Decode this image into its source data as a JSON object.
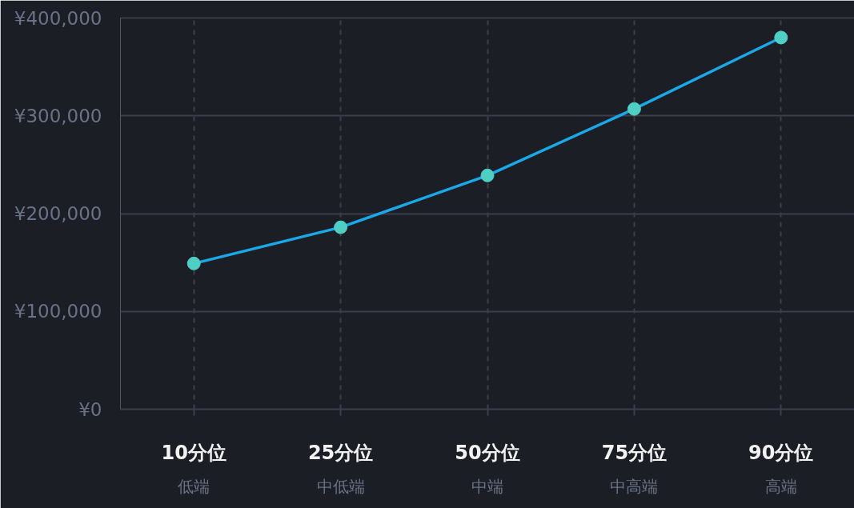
{
  "chart_data": {
    "type": "line",
    "categories": [
      "10分位",
      "25分位",
      "50分位",
      "75分位",
      "90分位"
    ],
    "values": [
      149000,
      186000,
      239000,
      307000,
      380000
    ],
    "color": "#1aa9e6",
    "colors": [
      "#4fcfc3",
      "#4fcfc3",
      "#4fcfc3",
      "#4fcfc3",
      "#4fcfc3"
    ],
    "ylim": [
      0,
      400000
    ],
    "yticks": [
      {
        "value": 0,
        "label": "¥0"
      },
      {
        "value": 100000,
        "label": "¥100,000"
      },
      {
        "value": 200000,
        "label": "¥200,000"
      },
      {
        "value": 300000,
        "label": "¥300,000"
      },
      {
        "value": 400000,
        "label": "¥400,000"
      }
    ],
    "annotations": [
      "低端",
      "中低端",
      "中端",
      "中高端",
      "高端"
    ],
    "grid": true,
    "marker": "circle",
    "line_style": "solid"
  }
}
